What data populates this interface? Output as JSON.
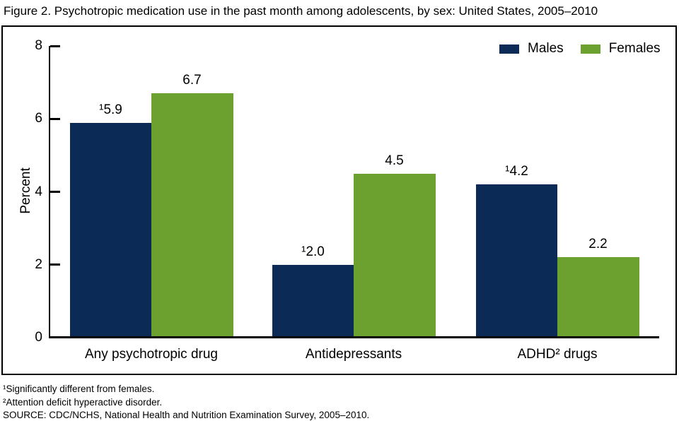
{
  "title": "Figure 2. Psychotropic medication use in the past month among adolescents, by sex: United States, 2005–2010",
  "chart_data": {
    "type": "bar",
    "categories": [
      "Any psychotropic drug",
      "Antidepressants",
      "ADHD² drugs"
    ],
    "series": [
      {
        "name": "Males",
        "color": "#0B2B56",
        "values": [
          5.9,
          2.0,
          4.2
        ],
        "labels": [
          "¹5.9",
          "¹2.0",
          "¹4.2"
        ]
      },
      {
        "name": "Females",
        "color": "#6CA02F",
        "values": [
          6.7,
          4.5,
          2.2
        ],
        "labels": [
          "6.7",
          "4.5",
          "2.2"
        ]
      }
    ],
    "xlabel": "",
    "ylabel": "Percent",
    "ylim": [
      0,
      8
    ],
    "yticks": [
      0,
      2,
      4,
      6,
      8
    ],
    "grid": false,
    "legend_position": "top-right",
    "axis_color": "#000000",
    "background_color": "#ffffff"
  },
  "footnotes": [
    "¹Significantly different from females.",
    "²Attention deficit hyperactive disorder.",
    "SOURCE: CDC/NCHS, National Health and Nutrition Examination Survey, 2005–2010."
  ]
}
